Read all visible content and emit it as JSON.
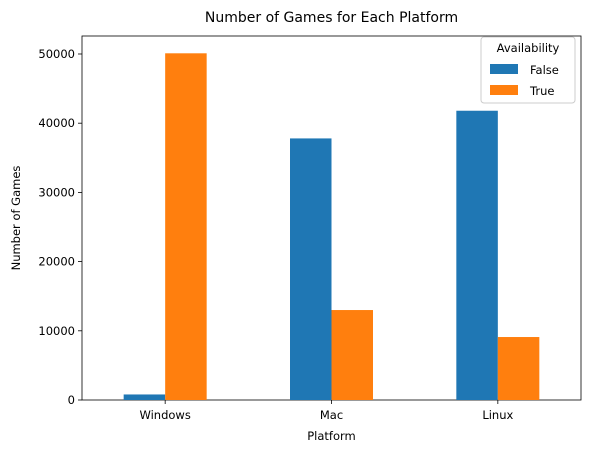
{
  "chart_data": {
    "type": "bar",
    "title": "Number of Games for Each Platform",
    "xlabel": "Platform",
    "ylabel": "Number of Games",
    "categories": [
      "Windows",
      "Mac",
      "Linux"
    ],
    "series": [
      {
        "name": "False",
        "values": [
          800,
          37800,
          41800
        ],
        "color": "#1f77b4"
      },
      {
        "name": "True",
        "values": [
          50100,
          13000,
          9100
        ],
        "color": "#ff7f0e"
      }
    ],
    "ylim": [
      0,
      52600
    ],
    "yticks": [
      0,
      10000,
      20000,
      30000,
      40000,
      50000
    ],
    "legend": {
      "title": "Availability",
      "position": "top-right"
    },
    "grid": false
  }
}
